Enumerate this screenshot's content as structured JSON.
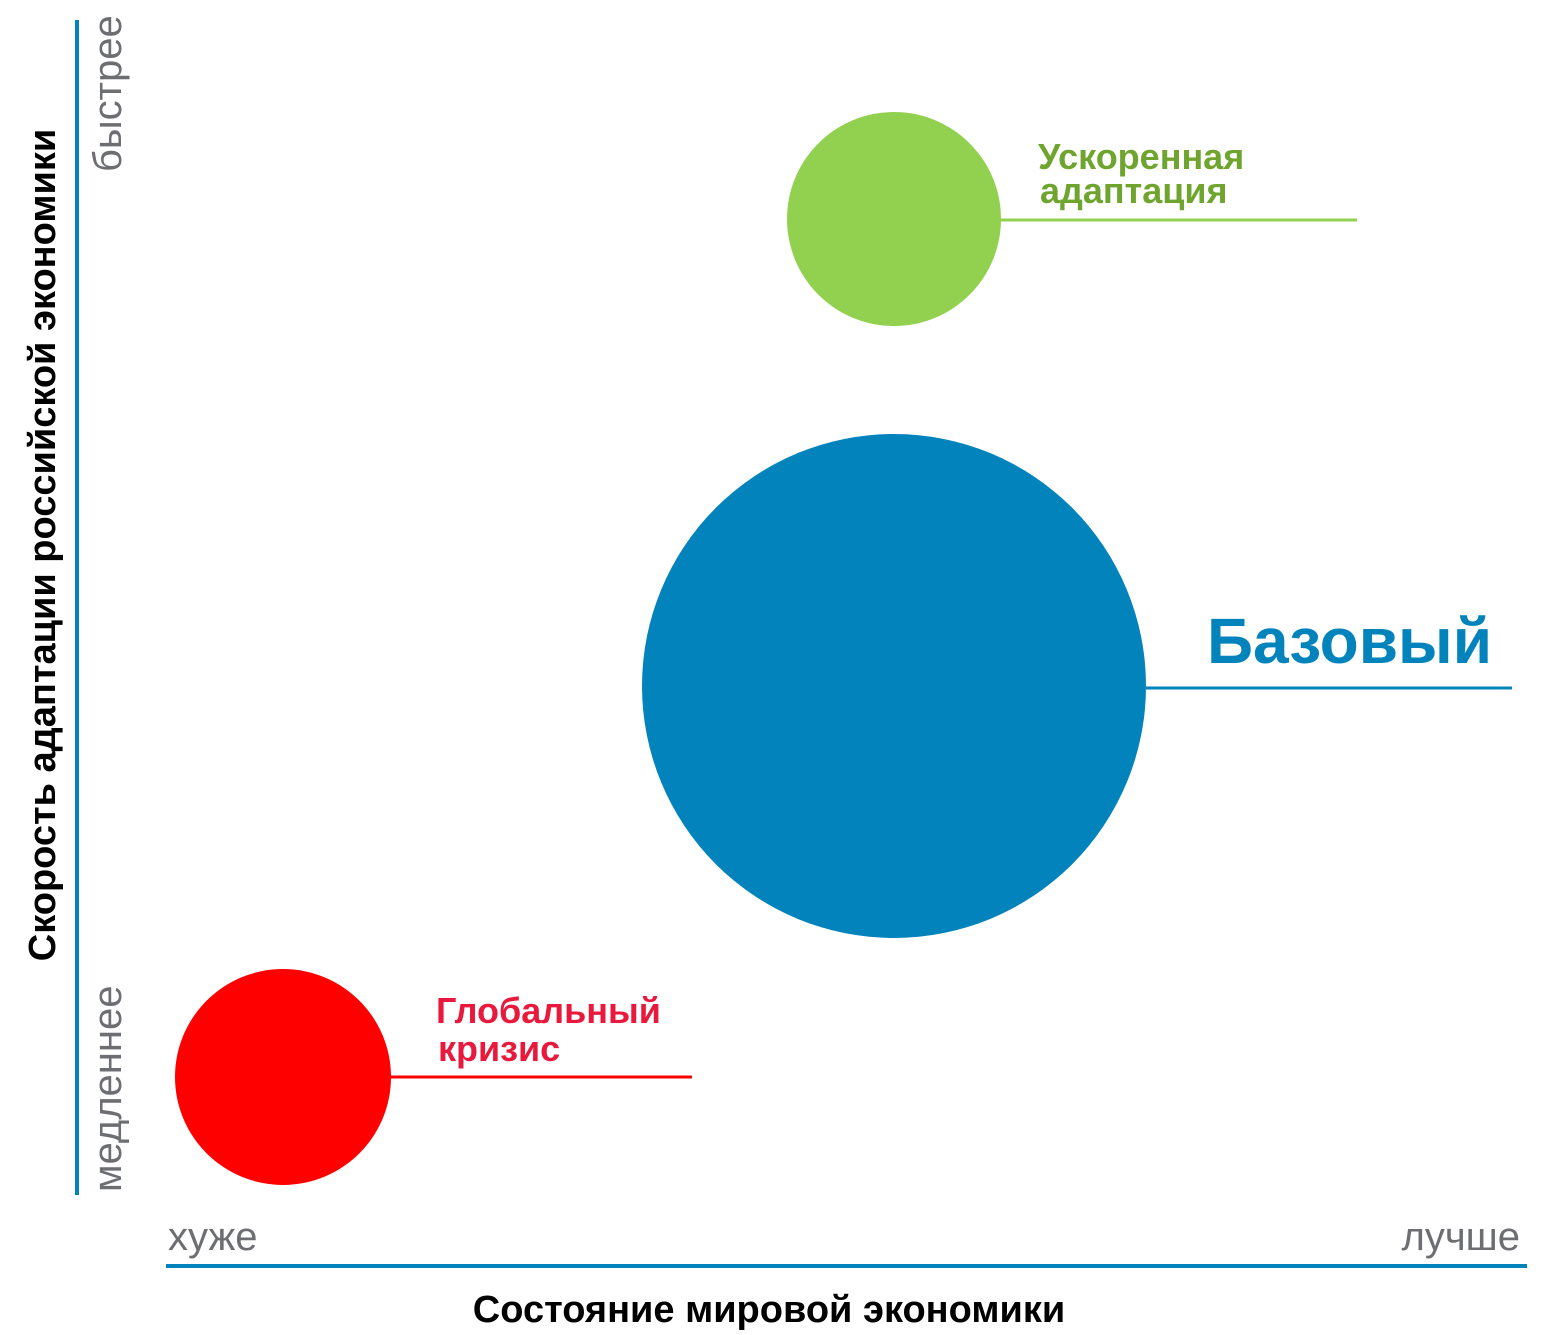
{
  "axes": {
    "x_title": "Состояние мировой экономики",
    "x_low": "хуже",
    "x_high": "лучше",
    "y_title": "Скорость адаптации российской экономики",
    "y_low": "медленнее",
    "y_high": "быстрее",
    "axis_color": "#0284bb"
  },
  "scenarios": [
    {
      "id": "accelerated",
      "label_line1": "Ускоренная",
      "label_line2": "адаптация",
      "color": "#92d050",
      "label_color": "#6fa52f"
    },
    {
      "id": "base",
      "label_line1": "Базовый",
      "color": "#0283bb",
      "label_color": "#0283bb"
    },
    {
      "id": "crisis",
      "label_line1": "Глобальный",
      "label_line2": "кризис",
      "color": "#ff0000",
      "label_color": "#e8193c"
    }
  ]
}
